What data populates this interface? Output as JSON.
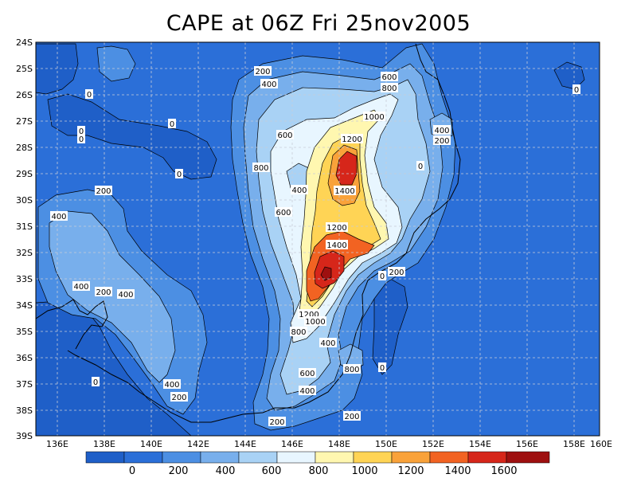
{
  "title": "CAPE at 06Z Fri 25nov2005",
  "map": {
    "lon_labels": [
      "136E",
      "138E",
      "140E",
      "142E",
      "144E",
      "146E",
      "148E",
      "150E",
      "152E",
      "154E",
      "156E",
      "158E",
      "160E"
    ],
    "lat_labels": [
      "24S",
      "25S",
      "26S",
      "27S",
      "28S",
      "29S",
      "30S",
      "31S",
      "32S",
      "33S",
      "34S",
      "35S",
      "36S",
      "37S",
      "38S",
      "39S"
    ],
    "contour_labels": [
      "200",
      "400",
      "0",
      "600",
      "800",
      "0",
      "0",
      "0",
      "0",
      "1000",
      "400",
      "600",
      "1200",
      "200",
      "800",
      "0",
      "400",
      "1400",
      "600",
      "200",
      "400",
      "1200",
      "1400",
      "0",
      "200",
      "400",
      "200",
      "400",
      "1200",
      "1000",
      "800",
      "400",
      "0",
      "800",
      "600",
      "400",
      "200",
      "400",
      "200",
      "200",
      "0",
      "0"
    ]
  },
  "colorbar": {
    "colors": [
      "#1f5fc8",
      "#2b6fd8",
      "#4c8fe3",
      "#78afec",
      "#a9d2f5",
      "#e8f6ff",
      "#fff7b0",
      "#ffd455",
      "#f9a23a",
      "#f26322",
      "#d6261a",
      "#9e1010"
    ],
    "labels": [
      "0",
      "200",
      "400",
      "600",
      "800",
      "1000",
      "1200",
      "1400",
      "1600"
    ]
  }
}
